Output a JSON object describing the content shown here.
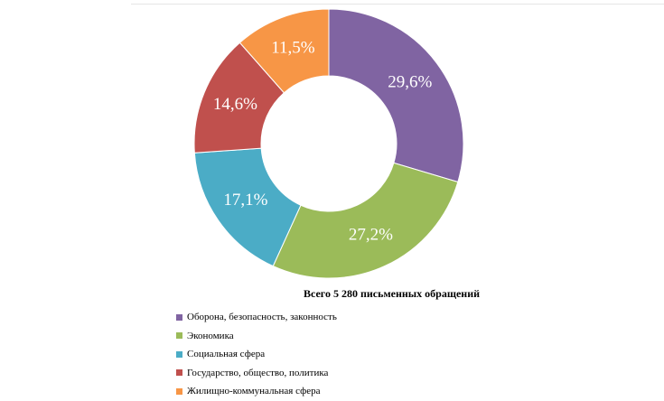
{
  "chart_data": {
    "type": "pie",
    "variant": "donut",
    "title": "Всего 5 280 письменных обращений",
    "categories": [
      "Оборона, безопасность, законность",
      "Экономика",
      "Социальная сфера",
      "Государство, общество, политика",
      "Жилищно-коммунальная сфера"
    ],
    "values": [
      29.6,
      27.2,
      17.1,
      14.6,
      11.5
    ],
    "labels": [
      "29,6%",
      "27,2%",
      "17,1%",
      "14,6%",
      "11,5%"
    ],
    "colors": [
      "#8064a2",
      "#9bbb59",
      "#4bacc6",
      "#c0504d",
      "#f79646"
    ],
    "legend_position": "bottom-left",
    "start_angle": "top, clockwise"
  }
}
